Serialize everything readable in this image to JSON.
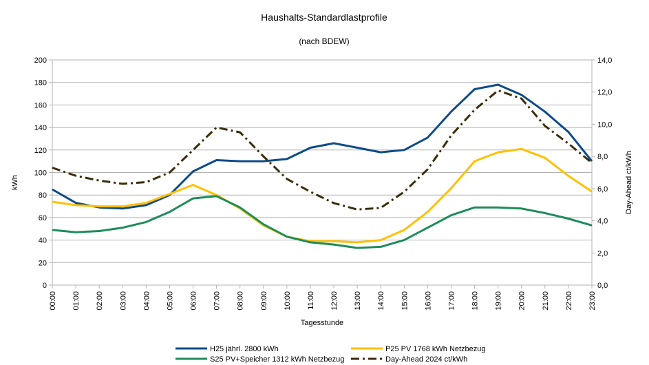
{
  "chart_data": {
    "type": "line",
    "title": "Haushalts-Standardlastprofile",
    "subtitle": "(nach BDEW)",
    "xlabel": "Tagesstunde",
    "ylabel": "kWh",
    "y2label": "Day-Ahead ct/kWh",
    "categories": [
      "00:00",
      "01:00",
      "02:00",
      "03:00",
      "04:00",
      "05:00",
      "06:00",
      "07:00",
      "08:00",
      "09:00",
      "10:00",
      "11:00",
      "12:00",
      "13:00",
      "14:00",
      "15:00",
      "16:00",
      "17:00",
      "18:00",
      "19:00",
      "20:00",
      "21:00",
      "22:00",
      "23:00"
    ],
    "ylim": [
      0,
      200
    ],
    "y_ticks": [
      "0",
      "20",
      "40",
      "60",
      "80",
      "100",
      "120",
      "140",
      "160",
      "180",
      "200"
    ],
    "y2lim": [
      0,
      14
    ],
    "y2_ticks": [
      "0,0",
      "2,0",
      "4,0",
      "6,0",
      "8,0",
      "10,0",
      "12,0",
      "14,0"
    ],
    "grid": true,
    "legend_position": "bottom",
    "series": [
      {
        "name": "H25 jährl. 2800 kWh",
        "axis": "left",
        "color": "#0d4a87",
        "style": "solid",
        "values": [
          85,
          73,
          69,
          68,
          71,
          80,
          101,
          111,
          110,
          110,
          112,
          122,
          126,
          122,
          118,
          120,
          131,
          154,
          174,
          178,
          169,
          154,
          136,
          110
        ]
      },
      {
        "name": "P25 PV 1768 kWh Netzbezug",
        "axis": "left",
        "color": "#ffc000",
        "style": "solid",
        "values": [
          74,
          71,
          70,
          70,
          73,
          81,
          89,
          80,
          68,
          53,
          43,
          39,
          39,
          38,
          40,
          49,
          65,
          86,
          110,
          118,
          121,
          113,
          97,
          83
        ]
      },
      {
        "name": "S25 PV+Speicher 1312 kWh Netzbezug",
        "axis": "left",
        "color": "#1e8c5a",
        "style": "solid",
        "values": [
          49,
          47,
          48,
          51,
          56,
          65,
          77,
          79,
          69,
          54,
          43,
          38,
          36,
          33,
          34,
          40,
          51,
          62,
          69,
          69,
          68,
          64,
          59,
          53
        ]
      },
      {
        "name": "Day-Ahead 2024 ct/kWh",
        "axis": "right",
        "color": "#3b2b0a",
        "style": "dashdot",
        "values": [
          7.3,
          6.8,
          6.5,
          6.3,
          6.4,
          7.0,
          8.4,
          9.8,
          9.5,
          8.0,
          6.6,
          5.8,
          5.1,
          4.7,
          4.8,
          5.8,
          7.2,
          9.3,
          10.9,
          12.1,
          11.6,
          9.9,
          8.8,
          7.6
        ]
      }
    ]
  }
}
